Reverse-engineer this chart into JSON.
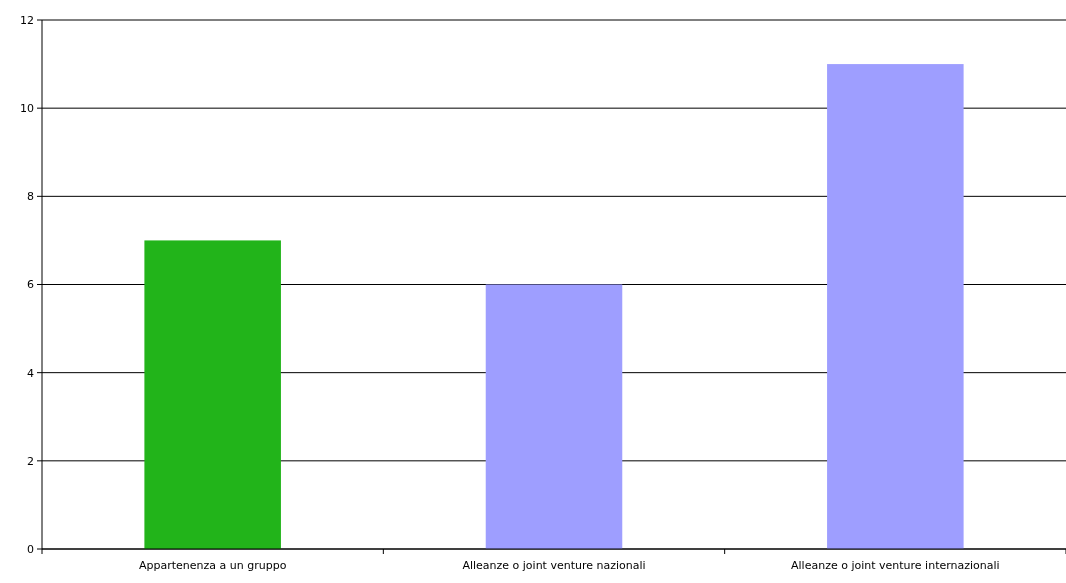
{
  "chart_data": {
    "type": "bar",
    "categories": [
      "Appartenenza a un gruppo",
      "Alleanze o joint venture nazionali",
      "Alleanze o joint venture internazionali"
    ],
    "values": [
      7,
      6,
      11
    ],
    "colors": [
      "#22b41a",
      "#9e9eff",
      "#9e9eff"
    ],
    "ylim": [
      0,
      12
    ],
    "yticks": [
      0,
      2,
      4,
      6,
      8,
      10,
      12
    ],
    "grid": "y"
  }
}
